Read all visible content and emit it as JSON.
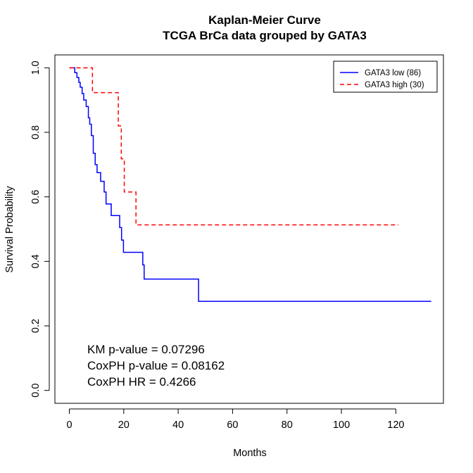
{
  "chart_data": {
    "type": "line",
    "title": "Kaplan-Meier Curve",
    "subtitle": "TCGA BrCa data grouped by GATA3",
    "xlabel": "Months",
    "ylabel": "Survival Probability",
    "xlim": [
      -5.3,
      137.5
    ],
    "ylim": [
      -0.04,
      1.04
    ],
    "xticks": [
      0,
      20,
      40,
      60,
      80,
      100,
      120
    ],
    "xtick_labels": [
      "0",
      "20",
      "40",
      "60",
      "80",
      "100",
      "120"
    ],
    "yticks": [
      0,
      0.2,
      0.4,
      0.6,
      0.8,
      1
    ],
    "ytick_labels": [
      "0.0",
      "0.2",
      "0.4",
      "0.6",
      "0.8",
      "1.0"
    ],
    "grid": false,
    "legend_position": "top-right",
    "series": [
      {
        "name": "GATA3 low (86)",
        "color": "#0000ff",
        "dash": "solid",
        "step": true,
        "x": [
          0,
          2,
          2.8,
          3.5,
          4,
          4.7,
          5.3,
          6.2,
          7,
          7.5,
          8.1,
          8.8,
          9.5,
          10.2,
          11.5,
          12.8,
          13.5,
          15.4,
          18.5,
          19.2,
          19.9,
          27,
          27.5,
          47.5,
          133
        ],
        "y": [
          1.0,
          0.985,
          0.97,
          0.955,
          0.94,
          0.92,
          0.9,
          0.88,
          0.845,
          0.825,
          0.79,
          0.735,
          0.7,
          0.675,
          0.648,
          0.615,
          0.578,
          0.542,
          0.505,
          0.466,
          0.428,
          0.389,
          0.345,
          0.276,
          0.276
        ]
      },
      {
        "name": "GATA3 high (30)",
        "color": "#ff0000",
        "dash": "dashed",
        "step": true,
        "x": [
          0,
          8.5,
          18,
          19.1,
          20.2,
          24.5,
          121
        ],
        "y": [
          1.0,
          0.923,
          0.82,
          0.718,
          0.615,
          0.513,
          0.513
        ]
      }
    ],
    "annotations": [
      "KM p-value = 0.07296",
      "CoxPH p-value = 0.08162",
      "CoxPH HR = 0.4266"
    ]
  }
}
